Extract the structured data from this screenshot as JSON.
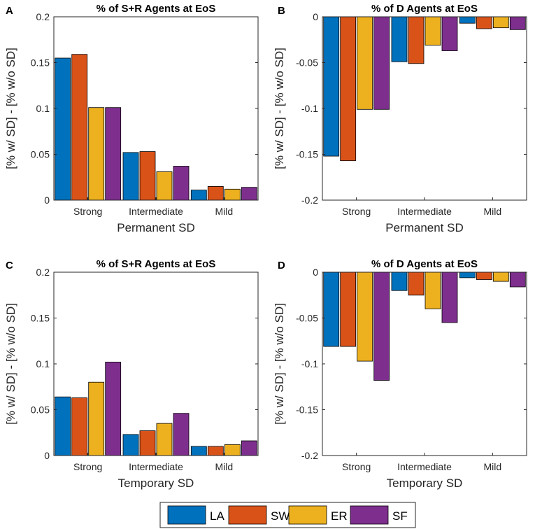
{
  "series_colors": [
    "#0072BD",
    "#D95319",
    "#EDB120",
    "#7E2F8E"
  ],
  "legend": [
    {
      "name": "LA",
      "color": "#0072BD"
    },
    {
      "name": "SW",
      "color": "#D95319"
    },
    {
      "name": "ER",
      "color": "#EDB120"
    },
    {
      "name": "SF",
      "color": "#7E2F8E"
    }
  ],
  "chart_data": [
    {
      "panel": "A",
      "type": "bar",
      "title": "% of S+R Agents at EoS",
      "xlabel": "Permanent SD",
      "ylabel": "[% w/ SD] - [% w/o SD]",
      "categories": [
        "Strong",
        "Intermediate",
        "Mild"
      ],
      "ylim": [
        0,
        0.2
      ],
      "yticks": [
        0,
        0.05,
        0.1,
        0.15,
        0.2
      ],
      "ytick_labels": [
        "0",
        "0.05",
        "0.1",
        "0.15",
        "0.2"
      ],
      "series": [
        {
          "name": "LA",
          "values": [
            0.155,
            0.052,
            0.011
          ]
        },
        {
          "name": "SW",
          "values": [
            0.159,
            0.053,
            0.015
          ]
        },
        {
          "name": "ER",
          "values": [
            0.101,
            0.031,
            0.012
          ]
        },
        {
          "name": "SF",
          "values": [
            0.101,
            0.037,
            0.014
          ]
        }
      ]
    },
    {
      "panel": "B",
      "type": "bar",
      "title": "% of D Agents at EoS",
      "xlabel": "Permanent SD",
      "ylabel": "[% w/ SD] - [% w/o SD]",
      "categories": [
        "Strong",
        "Intermediate",
        "Mild"
      ],
      "ylim": [
        -0.2,
        0
      ],
      "yticks": [
        -0.2,
        -0.15,
        -0.1,
        -0.05,
        0
      ],
      "ytick_labels": [
        "-0.2",
        "-0.15",
        "-0.1",
        "-0.05",
        "0"
      ],
      "series": [
        {
          "name": "LA",
          "values": [
            -0.152,
            -0.049,
            -0.007
          ]
        },
        {
          "name": "SW",
          "values": [
            -0.157,
            -0.051,
            -0.013
          ]
        },
        {
          "name": "ER",
          "values": [
            -0.101,
            -0.031,
            -0.012
          ]
        },
        {
          "name": "SF",
          "values": [
            -0.101,
            -0.037,
            -0.014
          ]
        }
      ]
    },
    {
      "panel": "C",
      "type": "bar",
      "title": "% of S+R Agents at EoS",
      "xlabel": "Temporary SD",
      "ylabel": "[% w/ SD] - [% w/o SD]",
      "categories": [
        "Strong",
        "Intermediate",
        "Mild"
      ],
      "ylim": [
        0,
        0.2
      ],
      "yticks": [
        0,
        0.05,
        0.1,
        0.15,
        0.2
      ],
      "ytick_labels": [
        "0",
        "0.05",
        "0.1",
        "0.15",
        "0.2"
      ],
      "series": [
        {
          "name": "LA",
          "values": [
            0.064,
            0.023,
            0.01
          ]
        },
        {
          "name": "SW",
          "values": [
            0.063,
            0.027,
            0.01
          ]
        },
        {
          "name": "ER",
          "values": [
            0.08,
            0.035,
            0.012
          ]
        },
        {
          "name": "SF",
          "values": [
            0.102,
            0.046,
            0.016
          ]
        }
      ]
    },
    {
      "panel": "D",
      "type": "bar",
      "title": "% of D Agents at EoS",
      "xlabel": "Temporary SD",
      "ylabel": "[% w/ SD] - [% w/o SD]",
      "categories": [
        "Strong",
        "Intermediate",
        "Mild"
      ],
      "ylim": [
        -0.2,
        0
      ],
      "yticks": [
        -0.2,
        -0.15,
        -0.1,
        -0.05,
        0
      ],
      "ytick_labels": [
        "-0.2",
        "-0.15",
        "-0.1",
        "-0.05",
        "0"
      ],
      "series": [
        {
          "name": "LA",
          "values": [
            -0.081,
            -0.02,
            -0.006
          ]
        },
        {
          "name": "SW",
          "values": [
            -0.081,
            -0.025,
            -0.008
          ]
        },
        {
          "name": "ER",
          "values": [
            -0.097,
            -0.04,
            -0.01
          ]
        },
        {
          "name": "SF",
          "values": [
            -0.118,
            -0.055,
            -0.016
          ]
        }
      ]
    }
  ]
}
